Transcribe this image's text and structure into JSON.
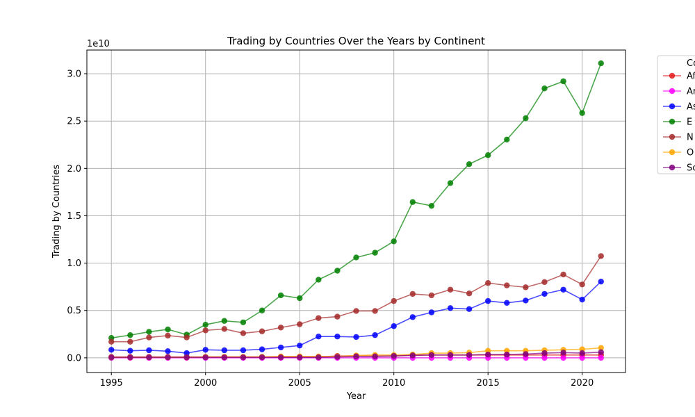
{
  "chart_data": {
    "type": "line",
    "title": "Trading by Countries Over the Years by Continent",
    "xlabel": "Year",
    "ylabel": "Trading by Countries",
    "offset_label": "1e10",
    "xlim": [
      1993.7,
      2022.3
    ],
    "ylim": [
      -0.155,
      3.25
    ],
    "x_ticks": [
      1995,
      2000,
      2005,
      2010,
      2015,
      2020
    ],
    "x_tick_labels": [
      "1995",
      "2000",
      "2005",
      "2010",
      "2015",
      "2020"
    ],
    "y_ticks": [
      0.0,
      0.5,
      1.0,
      1.5,
      2.0,
      2.5,
      3.0
    ],
    "y_tick_labels": [
      "0.0",
      "0.5",
      "1.0",
      "1.5",
      "2.0",
      "2.5",
      "3.0"
    ],
    "grid": true,
    "legend": {
      "title": "Co",
      "position": "outside-right-top",
      "labels": [
        "Af",
        "Ar",
        "As",
        "E",
        "N",
        "O",
        "Sc"
      ]
    },
    "x": [
      1995,
      1996,
      1997,
      1998,
      1999,
      2000,
      2001,
      2002,
      2003,
      2004,
      2005,
      2006,
      2007,
      2008,
      2009,
      2010,
      2011,
      2012,
      2013,
      2014,
      2015,
      2016,
      2017,
      2018,
      2019,
      2020,
      2021
    ],
    "series": [
      {
        "name": "Af",
        "color": "#e31a1c",
        "values": [
          0.01,
          0.01,
          0.01,
          0.01,
          0.01,
          0.01,
          0.01,
          0.01,
          0.01,
          0.01,
          0.01,
          0.01,
          0.02,
          0.02,
          0.02,
          0.02,
          0.03,
          0.03,
          0.03,
          0.03,
          0.03,
          0.03,
          0.03,
          0.03,
          0.03,
          0.03,
          0.03
        ]
      },
      {
        "name": "Ar",
        "color": "#ff00ff",
        "values": [
          0.0,
          0.0,
          0.0,
          0.0,
          0.0,
          0.0,
          0.0,
          0.0,
          0.0,
          0.0,
          0.0,
          0.0,
          0.0,
          0.0,
          0.0,
          0.0,
          0.0,
          0.0,
          0.0,
          0.0,
          0.0,
          0.0,
          0.0,
          0.0,
          0.0,
          0.0,
          0.0
        ]
      },
      {
        "name": "As",
        "color": "#0000ff",
        "values": [
          0.085,
          0.075,
          0.08,
          0.07,
          0.05,
          0.085,
          0.08,
          0.08,
          0.09,
          0.11,
          0.13,
          0.225,
          0.225,
          0.22,
          0.24,
          0.335,
          0.43,
          0.48,
          0.525,
          0.515,
          0.6,
          0.58,
          0.605,
          0.675,
          0.72,
          0.615,
          0.805
        ]
      },
      {
        "name": "E",
        "color": "#008000",
        "values": [
          0.21,
          0.24,
          0.275,
          0.3,
          0.245,
          0.35,
          0.39,
          0.375,
          0.5,
          0.66,
          0.63,
          0.825,
          0.92,
          1.06,
          1.11,
          1.23,
          1.645,
          1.605,
          1.845,
          2.045,
          2.14,
          2.305,
          2.53,
          2.845,
          2.92,
          2.585,
          3.11
        ]
      },
      {
        "name": "N",
        "color": "#a52a2a",
        "values": [
          0.17,
          0.17,
          0.215,
          0.235,
          0.215,
          0.29,
          0.305,
          0.26,
          0.28,
          0.32,
          0.355,
          0.42,
          0.435,
          0.495,
          0.495,
          0.6,
          0.675,
          0.66,
          0.72,
          0.68,
          0.79,
          0.765,
          0.745,
          0.8,
          0.88,
          0.775,
          1.075
        ]
      },
      {
        "name": "O",
        "color": "#ffa500",
        "values": [
          0.005,
          0.005,
          0.005,
          0.005,
          0.005,
          0.01,
          0.01,
          0.01,
          0.01,
          0.015,
          0.015,
          0.015,
          0.015,
          0.025,
          0.03,
          0.03,
          0.035,
          0.05,
          0.05,
          0.055,
          0.075,
          0.075,
          0.075,
          0.08,
          0.085,
          0.09,
          0.105
        ]
      },
      {
        "name": "Sc",
        "color": "#800080",
        "values": [
          0.005,
          0.005,
          0.005,
          0.005,
          0.005,
          0.005,
          0.005,
          0.005,
          0.005,
          0.005,
          0.005,
          0.005,
          0.01,
          0.015,
          0.015,
          0.02,
          0.025,
          0.03,
          0.03,
          0.03,
          0.035,
          0.035,
          0.04,
          0.05,
          0.055,
          0.05,
          0.06
        ]
      }
    ]
  }
}
